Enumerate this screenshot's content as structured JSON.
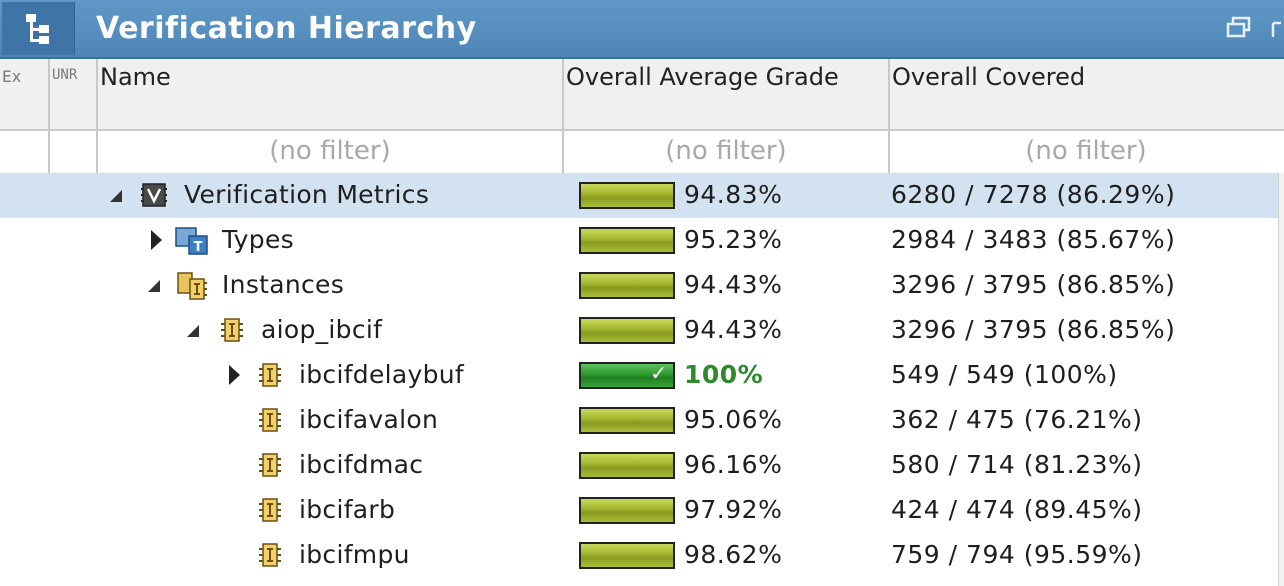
{
  "window": {
    "title": "Verification Hierarchy"
  },
  "columns": {
    "ex": "Ex",
    "unr": "UNR",
    "name": "Name",
    "grade": "Overall Average Grade",
    "covered": "Overall Covered"
  },
  "filters": {
    "name": "(no filter)",
    "grade": "(no filter)",
    "covered": "(no filter)"
  },
  "rows": [
    {
      "name": "Verification Metrics",
      "grade": "94.83%",
      "grade_value": 94.83,
      "covered": "6280 / 7278 (86.29%)",
      "expander": "expanded",
      "icon": "verification-metrics-icon",
      "selected": true
    },
    {
      "name": "Types",
      "grade": "95.23%",
      "grade_value": 95.23,
      "covered": "2984 / 3483 (85.67%)",
      "expander": "collapsed",
      "icon": "types-icon"
    },
    {
      "name": "Instances",
      "grade": "94.43%",
      "grade_value": 94.43,
      "covered": "3296 / 3795 (86.85%)",
      "expander": "expanded",
      "icon": "instances-icon"
    },
    {
      "name": "aiop_ibcif",
      "grade": "94.43%",
      "grade_value": 94.43,
      "covered": "3296 / 3795 (86.85%)",
      "expander": "expanded",
      "icon": "instance-icon"
    },
    {
      "name": "ibcifdelaybuf",
      "grade": "100%",
      "grade_value": 100,
      "covered": "549 / 549 (100%)",
      "expander": "collapsed",
      "icon": "instance-icon"
    },
    {
      "name": "ibcifavalon",
      "grade": "95.06%",
      "grade_value": 95.06,
      "covered": "362 / 475 (76.21%)",
      "expander": "none",
      "icon": "instance-icon"
    },
    {
      "name": "ibcifdmac",
      "grade": "96.16%",
      "grade_value": 96.16,
      "covered": "580 / 714 (81.23%)",
      "expander": "none",
      "icon": "instance-icon"
    },
    {
      "name": "ibcifarb",
      "grade": "97.92%",
      "grade_value": 97.92,
      "covered": "424 / 474 (89.45%)",
      "expander": "none",
      "icon": "instance-icon"
    },
    {
      "name": "ibcifmpu",
      "grade": "98.62%",
      "grade_value": 98.62,
      "covered": "759 / 794 (95.59%)",
      "expander": "none",
      "icon": "instance-icon"
    }
  ],
  "colors": {
    "title_bar": "#5a92c2",
    "selected_row": "#d3e2f0",
    "grade_bar": "#a7b933",
    "grade_bar_full": "#2f9a2f",
    "good_text": "#2d8a2d"
  }
}
